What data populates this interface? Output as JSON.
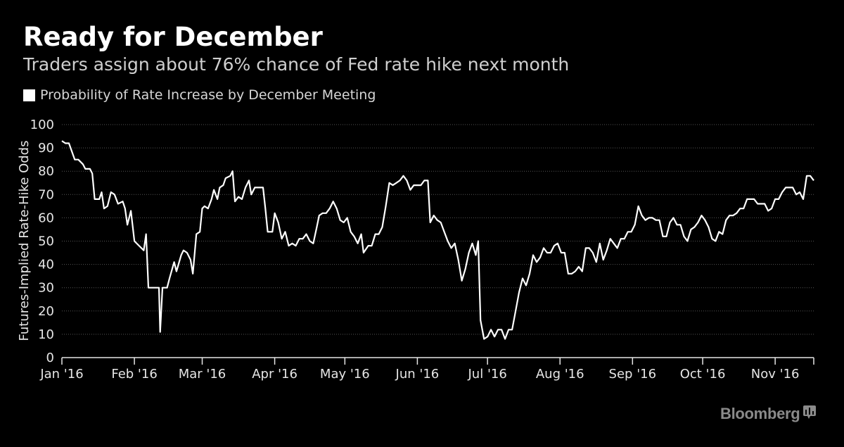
{
  "title": "Ready for December",
  "subtitle": "Traders assign about 76% chance of Fed rate hike next month",
  "legend": {
    "label": "Probability of Rate Increase by December Meeting",
    "color": "#ffffff"
  },
  "source_logo": "Bloomberg",
  "colors": {
    "background": "#000000",
    "line": "#ffffff",
    "grid": "#555555",
    "text": "#e6e6e6",
    "logo": "#8a8a8a"
  },
  "chart_data": {
    "type": "line",
    "ylabel": "Futures-Implied Rate-Hike Odds",
    "xlabel": "",
    "ylim": [
      0,
      100
    ],
    "yticks": [
      0,
      10,
      20,
      30,
      40,
      50,
      60,
      70,
      80,
      90,
      100
    ],
    "xlim": [
      0,
      316
    ],
    "grid": true,
    "legend_position": "top-left",
    "xticks": [
      {
        "label": "Jan '16",
        "day": 0
      },
      {
        "label": "Feb '16",
        "day": 31
      },
      {
        "label": "Mar '16",
        "day": 60
      },
      {
        "label": "Apr '16",
        "day": 91
      },
      {
        "label": "May '16",
        "day": 121
      },
      {
        "label": "Jun '16",
        "day": 152
      },
      {
        "label": "Jul '16",
        "day": 182
      },
      {
        "label": "Aug '16",
        "day": 213
      },
      {
        "label": "Sep '16",
        "day": 244
      },
      {
        "label": "Oct '16",
        "day": 274
      },
      {
        "label": "Nov '16",
        "day": 305
      }
    ],
    "series": [
      {
        "name": "Probability of Rate Increase by December Meeting",
        "color": "#ffffff",
        "points": [
          [
            0,
            93
          ],
          [
            1.5,
            92
          ],
          [
            3,
            92
          ],
          [
            5.5,
            85
          ],
          [
            7,
            85
          ],
          [
            9,
            83
          ],
          [
            10,
            81
          ],
          [
            12,
            81
          ],
          [
            13,
            79
          ],
          [
            14,
            68
          ],
          [
            16,
            68
          ],
          [
            17,
            71
          ],
          [
            18,
            64
          ],
          [
            19.5,
            65
          ],
          [
            21,
            71
          ],
          [
            22.5,
            70
          ],
          [
            24,
            66
          ],
          [
            26,
            67
          ],
          [
            27,
            64
          ],
          [
            28,
            57
          ],
          [
            29.5,
            63
          ],
          [
            31,
            50
          ],
          [
            33,
            48
          ],
          [
            35,
            46
          ],
          [
            36,
            53
          ],
          [
            37,
            30
          ],
          [
            41,
            30
          ],
          [
            41.5,
            30
          ],
          [
            42,
            11
          ],
          [
            43,
            30
          ],
          [
            45,
            30
          ],
          [
            46,
            34
          ],
          [
            48,
            41
          ],
          [
            49,
            37
          ],
          [
            51,
            44
          ],
          [
            52,
            46
          ],
          [
            53.5,
            45
          ],
          [
            55,
            42
          ],
          [
            56,
            36
          ],
          [
            57.5,
            53
          ],
          [
            59,
            54
          ],
          [
            60,
            64
          ],
          [
            61,
            65
          ],
          [
            62.5,
            64
          ],
          [
            64,
            68
          ],
          [
            65,
            72
          ],
          [
            66.5,
            68
          ],
          [
            67.5,
            73
          ],
          [
            69,
            74
          ],
          [
            70,
            77
          ],
          [
            72,
            78
          ],
          [
            73,
            80
          ],
          [
            74,
            67
          ],
          [
            75.5,
            69
          ],
          [
            77,
            68
          ],
          [
            78.5,
            73
          ],
          [
            80,
            76
          ],
          [
            81,
            70
          ],
          [
            82.5,
            73
          ],
          [
            84,
            73
          ],
          [
            86,
            73
          ],
          [
            87,
            64
          ],
          [
            88,
            54
          ],
          [
            90,
            54
          ],
          [
            91,
            62
          ],
          [
            92.5,
            58
          ],
          [
            94,
            51
          ],
          [
            95.5,
            54
          ],
          [
            97,
            48
          ],
          [
            98.5,
            49
          ],
          [
            100,
            48
          ],
          [
            101.5,
            51
          ],
          [
            103,
            51
          ],
          [
            104.5,
            53
          ],
          [
            106,
            50
          ],
          [
            107.5,
            49
          ],
          [
            109,
            56
          ],
          [
            110,
            61
          ],
          [
            111.5,
            62
          ],
          [
            113,
            62
          ],
          [
            114.5,
            64
          ],
          [
            116,
            67
          ],
          [
            117.5,
            64
          ],
          [
            119,
            59
          ],
          [
            120.5,
            58
          ],
          [
            122,
            60
          ],
          [
            123.5,
            54
          ],
          [
            125,
            52
          ],
          [
            126.5,
            49
          ],
          [
            128,
            53
          ],
          [
            129,
            45
          ],
          [
            131,
            48
          ],
          [
            132.5,
            48
          ],
          [
            134,
            53
          ],
          [
            135.5,
            53
          ],
          [
            137,
            56
          ],
          [
            138.5,
            65
          ],
          [
            140,
            75
          ],
          [
            141.5,
            74
          ],
          [
            143,
            75
          ],
          [
            144.5,
            76
          ],
          [
            146,
            78
          ],
          [
            147.5,
            76
          ],
          [
            149,
            72
          ],
          [
            150.5,
            74
          ],
          [
            152,
            74
          ],
          [
            153.5,
            74
          ],
          [
            155,
            76
          ],
          [
            156.5,
            76
          ],
          [
            157.5,
            58
          ],
          [
            159,
            61
          ],
          [
            160.5,
            59
          ],
          [
            162,
            58
          ],
          [
            163.5,
            54
          ],
          [
            165,
            50
          ],
          [
            166.5,
            47
          ],
          [
            168,
            49
          ],
          [
            169.5,
            42
          ],
          [
            171,
            33
          ],
          [
            172.5,
            38
          ],
          [
            174,
            45
          ],
          [
            175.5,
            49
          ],
          [
            177,
            44
          ],
          [
            178,
            50
          ],
          [
            179,
            16
          ],
          [
            180.5,
            8
          ],
          [
            182,
            9
          ],
          [
            183.5,
            12
          ],
          [
            185,
            9
          ],
          [
            186.5,
            12
          ],
          [
            188,
            12
          ],
          [
            189.5,
            8
          ],
          [
            191,
            12
          ],
          [
            192.5,
            12
          ],
          [
            194,
            20
          ],
          [
            195.5,
            28
          ],
          [
            197,
            34
          ],
          [
            198.5,
            31
          ],
          [
            200,
            36
          ],
          [
            201.5,
            44
          ],
          [
            203,
            41
          ],
          [
            204.5,
            43
          ],
          [
            206,
            47
          ],
          [
            207.5,
            45
          ],
          [
            209,
            45
          ],
          [
            210.5,
            48
          ],
          [
            212,
            49
          ],
          [
            213.5,
            45
          ],
          [
            215,
            45
          ],
          [
            216.5,
            36
          ],
          [
            218,
            36
          ],
          [
            219.5,
            37
          ],
          [
            221,
            39
          ],
          [
            222.5,
            37
          ],
          [
            224,
            47
          ],
          [
            225.5,
            47
          ],
          [
            227,
            45
          ],
          [
            228.5,
            41
          ],
          [
            230,
            49
          ],
          [
            231.5,
            42
          ],
          [
            233,
            46
          ],
          [
            234.5,
            51
          ],
          [
            236,
            49
          ],
          [
            237.5,
            47
          ],
          [
            239,
            51
          ],
          [
            240.5,
            51
          ],
          [
            242,
            54
          ],
          [
            243.5,
            54
          ],
          [
            245,
            57
          ],
          [
            246.5,
            65
          ],
          [
            248,
            61
          ],
          [
            249.5,
            59
          ],
          [
            251,
            60
          ],
          [
            252.5,
            60
          ],
          [
            254,
            59
          ],
          [
            255.5,
            59
          ],
          [
            257,
            52
          ],
          [
            258.5,
            52
          ],
          [
            260,
            58
          ],
          [
            261.5,
            60
          ],
          [
            263,
            57
          ],
          [
            264.5,
            57
          ],
          [
            266,
            52
          ],
          [
            267.5,
            50
          ],
          [
            269,
            55
          ],
          [
            270.5,
            56
          ],
          [
            272,
            58
          ],
          [
            273.5,
            61
          ],
          [
            275,
            59
          ],
          [
            276.5,
            56
          ],
          [
            278,
            51
          ],
          [
            279.5,
            50
          ],
          [
            281,
            54
          ],
          [
            282.5,
            53
          ],
          [
            284,
            59
          ],
          [
            285.5,
            61
          ],
          [
            287,
            61
          ],
          [
            288.5,
            62
          ],
          [
            290,
            64
          ],
          [
            291.5,
            64
          ],
          [
            293,
            68
          ],
          [
            294.5,
            68
          ],
          [
            296,
            68
          ],
          [
            297.5,
            66
          ],
          [
            299,
            66
          ],
          [
            300.5,
            66
          ],
          [
            302,
            63
          ],
          [
            303.5,
            64
          ],
          [
            305,
            68
          ],
          [
            306.5,
            68
          ],
          [
            308,
            71
          ],
          [
            309.5,
            73
          ],
          [
            311,
            73
          ],
          [
            312.5,
            73
          ],
          [
            314,
            70
          ],
          [
            315.5,
            71
          ],
          [
            317,
            68
          ],
          [
            318.5,
            78
          ],
          [
            320,
            78
          ],
          [
            321.5,
            76
          ]
        ]
      }
    ]
  }
}
